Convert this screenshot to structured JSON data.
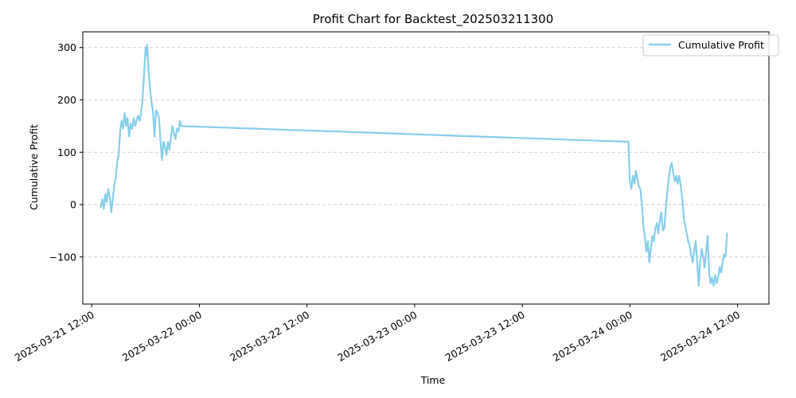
{
  "chart_data": {
    "type": "line",
    "title": "Profit Chart for Backtest_202503211300",
    "xlabel": "Time",
    "ylabel": "Cumulative Profit",
    "x_axis_type": "datetime",
    "xlim": [
      "2025-03-21 11:00",
      "2025-03-24 15:30"
    ],
    "ylim": [
      -190,
      330
    ],
    "x_ticks": [
      {
        "t": "2025-03-21 12:00",
        "label": "2025-03-21 12:00"
      },
      {
        "t": "2025-03-22 00:00",
        "label": "2025-03-22 00:00"
      },
      {
        "t": "2025-03-22 12:00",
        "label": "2025-03-22 12:00"
      },
      {
        "t": "2025-03-23 00:00",
        "label": "2025-03-23 00:00"
      },
      {
        "t": "2025-03-23 12:00",
        "label": "2025-03-23 12:00"
      },
      {
        "t": "2025-03-24 00:00",
        "label": "2025-03-24 00:00"
      },
      {
        "t": "2025-03-24 12:00",
        "label": "2025-03-24 12:00"
      }
    ],
    "y_ticks": [
      {
        "v": -100,
        "label": "−100"
      },
      {
        "v": 0,
        "label": "0"
      },
      {
        "v": 100,
        "label": "100"
      },
      {
        "v": 200,
        "label": "200"
      },
      {
        "v": 300,
        "label": "300"
      }
    ],
    "grid": {
      "x": false,
      "y": true
    },
    "legend": {
      "position": "top-right"
    },
    "series": [
      {
        "name": "Cumulative Profit",
        "color": "#87CEEB",
        "points": [
          [
            "2025-03-21 13:00",
            -5
          ],
          [
            "2025-03-21 13:10",
            10
          ],
          [
            "2025-03-21 13:20",
            -8
          ],
          [
            "2025-03-21 13:30",
            20
          ],
          [
            "2025-03-21 13:40",
            5
          ],
          [
            "2025-03-21 13:50",
            30
          ],
          [
            "2025-03-21 14:00",
            15
          ],
          [
            "2025-03-21 14:10",
            -15
          ],
          [
            "2025-03-21 14:20",
            10
          ],
          [
            "2025-03-21 14:30",
            35
          ],
          [
            "2025-03-21 14:40",
            50
          ],
          [
            "2025-03-21 14:50",
            80
          ],
          [
            "2025-03-21 15:00",
            95
          ],
          [
            "2025-03-21 15:10",
            140
          ],
          [
            "2025-03-21 15:20",
            160
          ],
          [
            "2025-03-21 15:30",
            145
          ],
          [
            "2025-03-21 15:40",
            175
          ],
          [
            "2025-03-21 15:50",
            150
          ],
          [
            "2025-03-21 16:00",
            165
          ],
          [
            "2025-03-21 16:10",
            130
          ],
          [
            "2025-03-21 16:20",
            155
          ],
          [
            "2025-03-21 16:30",
            145
          ],
          [
            "2025-03-21 16:40",
            165
          ],
          [
            "2025-03-21 16:50",
            150
          ],
          [
            "2025-03-21 17:00",
            160
          ],
          [
            "2025-03-21 17:10",
            170
          ],
          [
            "2025-03-21 17:20",
            160
          ],
          [
            "2025-03-21 17:30",
            175
          ],
          [
            "2025-03-21 17:40",
            200
          ],
          [
            "2025-03-21 17:50",
            250
          ],
          [
            "2025-03-21 18:00",
            300
          ],
          [
            "2025-03-21 18:05",
            285
          ],
          [
            "2025-03-21 18:10",
            305
          ],
          [
            "2025-03-21 18:20",
            260
          ],
          [
            "2025-03-21 18:30",
            220
          ],
          [
            "2025-03-21 18:40",
            195
          ],
          [
            "2025-03-21 18:50",
            175
          ],
          [
            "2025-03-21 19:00",
            130
          ],
          [
            "2025-03-21 19:10",
            180
          ],
          [
            "2025-03-21 19:20",
            175
          ],
          [
            "2025-03-21 19:30",
            165
          ],
          [
            "2025-03-21 19:40",
            120
          ],
          [
            "2025-03-21 19:50",
            85
          ],
          [
            "2025-03-21 20:00",
            120
          ],
          [
            "2025-03-21 20:10",
            110
          ],
          [
            "2025-03-21 20:20",
            95
          ],
          [
            "2025-03-21 20:30",
            120
          ],
          [
            "2025-03-21 20:40",
            105
          ],
          [
            "2025-03-21 20:50",
            130
          ],
          [
            "2025-03-21 21:00",
            150
          ],
          [
            "2025-03-21 21:10",
            135
          ],
          [
            "2025-03-21 21:20",
            125
          ],
          [
            "2025-03-21 21:30",
            145
          ],
          [
            "2025-03-21 21:40",
            140
          ],
          [
            "2025-03-21 21:50",
            160
          ],
          [
            "2025-03-21 22:00",
            150
          ],
          [
            "2025-03-23 23:50",
            120
          ],
          [
            "2025-03-24 00:00",
            45
          ],
          [
            "2025-03-24 00:10",
            30
          ],
          [
            "2025-03-24 00:20",
            55
          ],
          [
            "2025-03-24 00:30",
            40
          ],
          [
            "2025-03-24 00:40",
            65
          ],
          [
            "2025-03-24 00:50",
            50
          ],
          [
            "2025-03-24 01:00",
            35
          ],
          [
            "2025-03-24 01:10",
            30
          ],
          [
            "2025-03-24 01:20",
            0
          ],
          [
            "2025-03-24 01:30",
            -40
          ],
          [
            "2025-03-24 01:40",
            -60
          ],
          [
            "2025-03-24 01:50",
            -90
          ],
          [
            "2025-03-24 02:00",
            -70
          ],
          [
            "2025-03-24 02:10",
            -110
          ],
          [
            "2025-03-24 02:20",
            -85
          ],
          [
            "2025-03-24 02:30",
            -60
          ],
          [
            "2025-03-24 02:40",
            -70
          ],
          [
            "2025-03-24 02:50",
            -45
          ],
          [
            "2025-03-24 03:00",
            -35
          ],
          [
            "2025-03-24 03:10",
            -55
          ],
          [
            "2025-03-24 03:20",
            -30
          ],
          [
            "2025-03-24 03:30",
            -15
          ],
          [
            "2025-03-24 03:40",
            -50
          ],
          [
            "2025-03-24 03:50",
            -45
          ],
          [
            "2025-03-24 04:00",
            -10
          ],
          [
            "2025-03-24 04:10",
            25
          ],
          [
            "2025-03-24 04:20",
            50
          ],
          [
            "2025-03-24 04:30",
            70
          ],
          [
            "2025-03-24 04:40",
            80
          ],
          [
            "2025-03-24 04:50",
            60
          ],
          [
            "2025-03-24 05:00",
            45
          ],
          [
            "2025-03-24 05:10",
            55
          ],
          [
            "2025-03-24 05:20",
            40
          ],
          [
            "2025-03-24 05:30",
            55
          ],
          [
            "2025-03-24 05:40",
            35
          ],
          [
            "2025-03-24 05:50",
            10
          ],
          [
            "2025-03-24 06:00",
            -25
          ],
          [
            "2025-03-24 06:10",
            -40
          ],
          [
            "2025-03-24 06:20",
            -55
          ],
          [
            "2025-03-24 06:30",
            -70
          ],
          [
            "2025-03-24 06:40",
            -80
          ],
          [
            "2025-03-24 06:50",
            -95
          ],
          [
            "2025-03-24 07:00",
            -110
          ],
          [
            "2025-03-24 07:10",
            -90
          ],
          [
            "2025-03-24 07:20",
            -70
          ],
          [
            "2025-03-24 07:30",
            -110
          ],
          [
            "2025-03-24 07:40",
            -155
          ],
          [
            "2025-03-24 07:50",
            -110
          ],
          [
            "2025-03-24 08:00",
            -85
          ],
          [
            "2025-03-24 08:10",
            -100
          ],
          [
            "2025-03-24 08:20",
            -120
          ],
          [
            "2025-03-24 08:30",
            -90
          ],
          [
            "2025-03-24 08:40",
            -60
          ],
          [
            "2025-03-24 08:50",
            -130
          ],
          [
            "2025-03-24 09:00",
            -150
          ],
          [
            "2025-03-24 09:10",
            -140
          ],
          [
            "2025-03-24 09:20",
            -155
          ],
          [
            "2025-03-24 09:30",
            -135
          ],
          [
            "2025-03-24 09:40",
            -150
          ],
          [
            "2025-03-24 09:50",
            -140
          ],
          [
            "2025-03-24 10:00",
            -120
          ],
          [
            "2025-03-24 10:10",
            -130
          ],
          [
            "2025-03-24 10:20",
            -110
          ],
          [
            "2025-03-24 10:30",
            -95
          ],
          [
            "2025-03-24 10:40",
            -100
          ],
          [
            "2025-03-24 10:50",
            -55
          ]
        ]
      }
    ]
  }
}
